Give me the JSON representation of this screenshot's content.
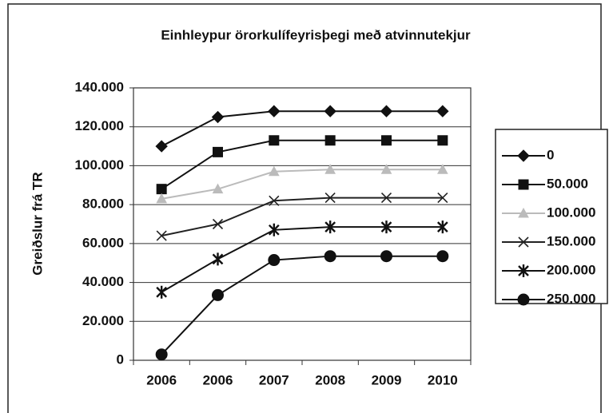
{
  "chart_data": {
    "type": "line",
    "title": "Einhleypur örorkulífeyrisþegi með atvinnutekjur",
    "y_label": "Greiðslur frá TR",
    "categories": [
      "2006",
      "2006",
      "2007",
      "2008",
      "2009",
      "2010"
    ],
    "series": [
      {
        "name": "0",
        "color": "#111111",
        "marker": "diamond",
        "values": [
          110000,
          125000,
          128000,
          128000,
          128000,
          128000
        ]
      },
      {
        "name": "50.000",
        "color": "#111111",
        "marker": "square",
        "values": [
          88000,
          107000,
          113000,
          113000,
          113000,
          113000
        ]
      },
      {
        "name": "100.000",
        "color": "#bbbbbb",
        "marker": "triangle",
        "values": [
          83000,
          88000,
          97000,
          98000,
          98000,
          98000
        ]
      },
      {
        "name": "150.000",
        "color": "#222222",
        "marker": "x",
        "values": [
          64000,
          70000,
          82000,
          83500,
          83500,
          83500
        ]
      },
      {
        "name": "200.000",
        "color": "#111111",
        "marker": "star",
        "values": [
          35000,
          52000,
          67000,
          68500,
          68500,
          68500
        ]
      },
      {
        "name": "250.000",
        "color": "#111111",
        "marker": "circle",
        "values": [
          3000,
          33500,
          51500,
          53500,
          53500,
          53500
        ]
      }
    ],
    "ylim": [
      0,
      140000
    ],
    "yticks": [
      0,
      {
        "value": 20000,
        "label": "20.000"
      },
      {
        "value": 40000,
        "label": "40.000"
      },
      {
        "value": 60000,
        "label": "60.000"
      },
      {
        "value": 80000,
        "label": "80.000"
      },
      {
        "value": 100000,
        "label": "100.000"
      },
      {
        "value": 120000,
        "label": "120.000"
      },
      {
        "value": 140000,
        "label": "140.000"
      }
    ],
    "grid": true,
    "legend": "right"
  }
}
